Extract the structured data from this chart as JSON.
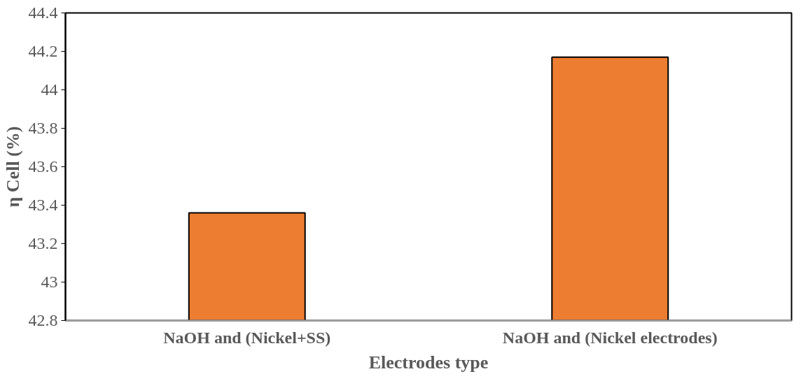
{
  "chart_data": {
    "type": "bar",
    "xlabel": "Electrodes type",
    "ylabel": "η Cell (%)",
    "categories": [
      "NaOH and (Nickel+SS)",
      "NaOH and (Nickel electrodes)"
    ],
    "values": [
      43.36,
      44.17
    ],
    "color": "#ed7d31",
    "ylim": [
      42.8,
      44.4
    ],
    "yticks": [
      42.8,
      43,
      43.2,
      43.4,
      43.6,
      43.8,
      44,
      44.2,
      44.4
    ],
    "grid": false
  }
}
